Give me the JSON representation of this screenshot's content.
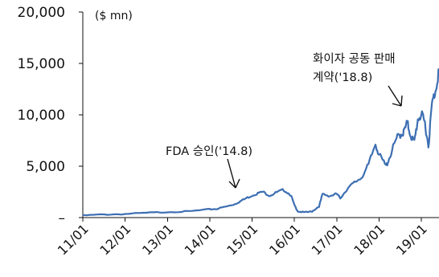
{
  "chart_data": {
    "type": "line",
    "unit_label": "($ mn)",
    "y_ticks": [
      {
        "value": 0,
        "label": "–"
      },
      {
        "value": 5000,
        "label": "5,000"
      },
      {
        "value": 10000,
        "label": "10,000"
      },
      {
        "value": 15000,
        "label": "15,000"
      },
      {
        "value": 20000,
        "label": "20,000"
      }
    ],
    "ylim": [
      0,
      20000
    ],
    "x_ticks": [
      {
        "value": "2011-01",
        "label": "11/01"
      },
      {
        "value": "2012-01",
        "label": "12/01"
      },
      {
        "value": "2013-01",
        "label": "13/01"
      },
      {
        "value": "2014-01",
        "label": "14/01"
      },
      {
        "value": "2015-01",
        "label": "15/01"
      },
      {
        "value": "2016-01",
        "label": "16/01"
      },
      {
        "value": "2017-01",
        "label": "17/01"
      },
      {
        "value": "2018-01",
        "label": "18/01"
      },
      {
        "value": "2019-01",
        "label": "19/01"
      }
    ],
    "xlim": [
      "2011-01",
      "2019-06"
    ],
    "grid": false,
    "series": [
      {
        "color": "#3d6fb3",
        "points": [
          [
            "2011-01",
            200
          ],
          [
            "2011-07",
            300
          ],
          [
            "2012-01",
            350
          ],
          [
            "2012-07",
            450
          ],
          [
            "2013-01",
            550
          ],
          [
            "2013-07",
            600
          ],
          [
            "2014-01",
            800
          ],
          [
            "2014-03",
            850
          ],
          [
            "2014-06",
            1100
          ],
          [
            "2014-08",
            1300
          ],
          [
            "2014-10",
            1650
          ],
          [
            "2014-12",
            2000
          ],
          [
            "2015-02",
            2300
          ],
          [
            "2015-04",
            2500
          ],
          [
            "2015-06",
            2150
          ],
          [
            "2015-08",
            2450
          ],
          [
            "2015-10",
            2700
          ],
          [
            "2015-12",
            2200
          ],
          [
            "2016-01",
            1200
          ],
          [
            "2016-02",
            600
          ],
          [
            "2016-04",
            500
          ],
          [
            "2016-06",
            600
          ],
          [
            "2016-08",
            1100
          ],
          [
            "2016-09",
            2300
          ],
          [
            "2016-11",
            2100
          ],
          [
            "2017-01",
            2300
          ],
          [
            "2017-02",
            1900
          ],
          [
            "2017-04",
            2800
          ],
          [
            "2017-06",
            3400
          ],
          [
            "2017-08",
            3900
          ],
          [
            "2017-10",
            5100
          ],
          [
            "2017-12",
            7200
          ],
          [
            "2018-01",
            6100
          ],
          [
            "2018-03",
            5000
          ],
          [
            "2018-04",
            5900
          ],
          [
            "2018-06",
            7700
          ],
          [
            "2018-07",
            8100
          ],
          [
            "2018-08",
            8300
          ],
          [
            "2018-09",
            9200
          ],
          [
            "2018-10",
            8000
          ],
          [
            "2018-11",
            7300
          ],
          [
            "2018-12",
            9600
          ],
          [
            "2019-01",
            10000
          ],
          [
            "2019-02",
            9200
          ],
          [
            "2019-03",
            7000
          ],
          [
            "2019-04",
            11000
          ],
          [
            "2019-05",
            12400
          ],
          [
            "2019-06",
            14500
          ]
        ]
      }
    ],
    "annotations": [
      {
        "text": "FDA 승인('14.8)",
        "at": "2014-08"
      },
      {
        "text_lines": [
          "화이자 공동 판매",
          "계약('18.8)"
        ],
        "at": "2018-08"
      }
    ]
  }
}
